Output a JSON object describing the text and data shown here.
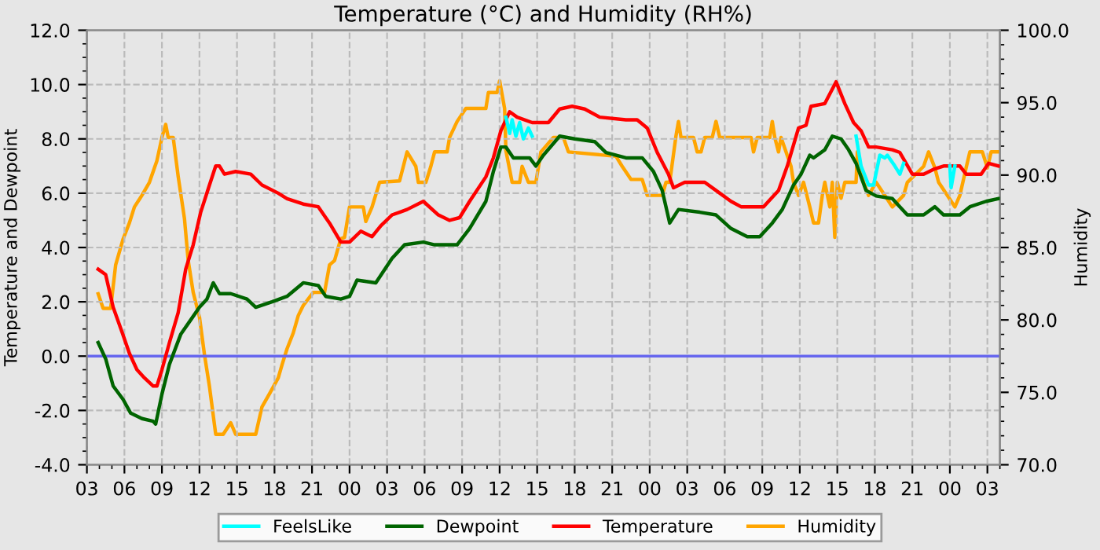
{
  "chart_data": {
    "type": "line",
    "title": "Temperature (°C) and Humidity (RH%)",
    "ylabel": "Temperature and Dewpoint",
    "y2label": "Humidity",
    "xlim": [
      3,
      76
    ],
    "xticks": [
      {
        "value": 3,
        "label": "03"
      },
      {
        "value": 6,
        "label": "06"
      },
      {
        "value": 9,
        "label": "09"
      },
      12,
      15,
      18,
      21,
      {
        "value": 24,
        "label": "00"
      },
      {
        "value": 27,
        "label": "03"
      },
      {
        "value": 30,
        "label": "06"
      },
      {
        "value": 33,
        "label": "09"
      },
      {
        "value": 36,
        "label": "12"
      },
      {
        "value": 39,
        "label": "15"
      },
      {
        "value": 42,
        "label": "18"
      },
      {
        "value": 45,
        "label": "21"
      },
      {
        "value": 48,
        "label": "00"
      },
      {
        "value": 51,
        "label": "03"
      },
      {
        "value": 54,
        "label": "06"
      },
      {
        "value": 57,
        "label": "09"
      },
      {
        "value": 60,
        "label": "12"
      },
      {
        "value": 63,
        "label": "15"
      },
      {
        "value": 66,
        "label": "18"
      },
      {
        "value": 69,
        "label": "21"
      },
      {
        "value": 72,
        "label": "00"
      },
      {
        "value": 75,
        "label": "03"
      }
    ],
    "ylim": [
      -4,
      12
    ],
    "yticks": [
      {
        "value": -4,
        "label": "-4.0"
      },
      {
        "value": -2,
        "label": "-2.0"
      },
      {
        "value": 0,
        "label": "0.0"
      },
      {
        "value": 2,
        "label": "2.0"
      },
      {
        "value": 4,
        "label": "4.0"
      },
      {
        "value": 6,
        "label": "6.0"
      },
      {
        "value": 8,
        "label": "8.0"
      },
      {
        "value": 10,
        "label": "10.0"
      },
      {
        "value": 12,
        "label": "12.0"
      }
    ],
    "y2lim": [
      70,
      100
    ],
    "y2ticks": [
      {
        "value": 70,
        "label": "70.0"
      },
      {
        "value": 75,
        "label": "75.0"
      },
      {
        "value": 80,
        "label": "80.0"
      },
      {
        "value": 85,
        "label": "85.0"
      },
      {
        "value": 90,
        "label": "90.0"
      },
      {
        "value": 95,
        "label": "95.0"
      },
      {
        "value": 100,
        "label": "100.0"
      }
    ],
    "grid": true,
    "legend": "bottom",
    "ref_lines": [
      {
        "axis": "y",
        "value": 0,
        "color": "#6666ee"
      }
    ],
    "series": [
      {
        "name": "FeelsLike",
        "color": "#00ffff",
        "x": [
          36.5,
          36.8,
          37.0,
          37.3,
          37.6,
          37.9,
          38.3,
          38.6,
          39.0,
          64.5,
          64.9,
          65.5,
          65.9,
          66.4,
          66.8,
          67.0,
          67.6,
          68.0,
          68.3,
          69.0,
          72.0,
          72.1,
          72.4
        ],
        "values": [
          8.8,
          8.2,
          8.7,
          8.1,
          8.6,
          8.0,
          8.4,
          8.1,
          null,
          8.1,
          7.0,
          6.3,
          6.3,
          7.4,
          7.3,
          7.4,
          7.0,
          6.7,
          7.1,
          null,
          7.0,
          6.2,
          7.0
        ]
      },
      {
        "name": "Dewpoint",
        "color": "#006400",
        "x": [
          3.9,
          4.5,
          5.1,
          5.9,
          6.5,
          7.4,
          8.3,
          8.5,
          9.0,
          9.6,
          10.5,
          11.4,
          12.0,
          12.6,
          13.1,
          13.6,
          14.5,
          15.8,
          16.5,
          17.8,
          19.0,
          20.3,
          21.5,
          22.1,
          23.3,
          24.0,
          24.6,
          26.1,
          27.4,
          28.4,
          29.9,
          30.8,
          32.6,
          33.6,
          34.9,
          35.5,
          36.1,
          36.5,
          37.1,
          38.4,
          38.9,
          39.5,
          40.8,
          42.0,
          43.6,
          44.5,
          46.1,
          47.4,
          48.3,
          49.0,
          49.6,
          50.3,
          52.0,
          53.3,
          54.5,
          55.8,
          56.8,
          57.8,
          58.6,
          59.5,
          60.1,
          60.8,
          61.1,
          62.0,
          62.6,
          63.3,
          63.9,
          64.5,
          65.3,
          66.1,
          67.4,
          68.0,
          68.6,
          69.9,
          70.8,
          71.5,
          72.8,
          73.6,
          74.9,
          75.9
        ],
        "values": [
          0.5,
          -0.1,
          -1.1,
          -1.6,
          -2.1,
          -2.3,
          -2.4,
          -2.5,
          -1.4,
          -0.3,
          0.8,
          1.4,
          1.8,
          2.1,
          2.7,
          2.3,
          2.3,
          2.1,
          1.8,
          2.0,
          2.2,
          2.7,
          2.6,
          2.2,
          2.1,
          2.2,
          2.8,
          2.7,
          3.6,
          4.1,
          4.2,
          4.1,
          4.1,
          4.7,
          5.7,
          6.8,
          7.7,
          7.7,
          7.3,
          7.3,
          7.0,
          7.4,
          8.1,
          8.0,
          7.9,
          7.5,
          7.3,
          7.3,
          6.8,
          6.1,
          4.9,
          5.4,
          5.3,
          5.2,
          4.7,
          4.4,
          4.4,
          4.9,
          5.4,
          6.3,
          6.7,
          7.4,
          7.3,
          7.6,
          8.1,
          8.0,
          7.6,
          7.1,
          6.1,
          5.9,
          5.8,
          5.5,
          5.2,
          5.2,
          5.5,
          5.2,
          5.2,
          5.5,
          5.7,
          5.8
        ]
      },
      {
        "name": "Temperature",
        "color": "#ff0000",
        "x": [
          3.9,
          4.5,
          5.1,
          5.8,
          6.4,
          7.0,
          7.6,
          8.3,
          8.6,
          9.0,
          9.6,
          10.3,
          10.9,
          11.5,
          12.1,
          12.8,
          13.3,
          13.6,
          14.0,
          14.9,
          16.1,
          17.0,
          18.3,
          19.0,
          20.3,
          21.5,
          22.4,
          23.3,
          24.0,
          24.9,
          25.8,
          26.5,
          27.4,
          28.6,
          29.9,
          31.1,
          32.0,
          32.8,
          33.6,
          34.9,
          35.5,
          36.1,
          36.8,
          37.4,
          38.6,
          39.9,
          40.8,
          41.8,
          42.8,
          44.0,
          46.1,
          47.0,
          47.8,
          48.6,
          49.5,
          49.9,
          50.8,
          52.4,
          53.3,
          54.5,
          55.3,
          57.1,
          58.3,
          59.0,
          59.9,
          60.5,
          60.9,
          62.0,
          62.9,
          63.6,
          64.3,
          64.9,
          65.5,
          66.1,
          67.4,
          68.0,
          69.0,
          69.9,
          70.8,
          71.5,
          72.8,
          73.3,
          74.5,
          75.1,
          75.9
        ],
        "values": [
          3.2,
          3.0,
          1.8,
          0.9,
          0.1,
          -0.5,
          -0.8,
          -1.1,
          -1.1,
          -0.5,
          0.5,
          1.6,
          3.2,
          4.1,
          5.3,
          6.3,
          7.0,
          7.0,
          6.7,
          6.8,
          6.7,
          6.3,
          6.0,
          5.8,
          5.6,
          5.5,
          4.9,
          4.2,
          4.2,
          4.6,
          4.4,
          4.8,
          5.2,
          5.4,
          5.7,
          5.2,
          5.0,
          5.1,
          5.7,
          6.6,
          7.3,
          8.3,
          9.0,
          8.8,
          8.6,
          8.6,
          9.1,
          9.2,
          9.1,
          8.8,
          8.7,
          8.7,
          8.4,
          7.5,
          6.7,
          6.2,
          6.4,
          6.4,
          6.1,
          5.7,
          5.5,
          5.5,
          6.1,
          7.0,
          8.4,
          8.5,
          9.2,
          9.3,
          10.1,
          9.3,
          8.6,
          8.3,
          7.7,
          7.7,
          7.6,
          7.5,
          6.7,
          6.7,
          6.9,
          7.0,
          7.0,
          6.7,
          6.7,
          7.1,
          7.0
        ]
      },
      {
        "name": "Humidity",
        "color": "#ffa500",
        "axis": "y2",
        "x": [
          3.9,
          4.3,
          4.9,
          5.3,
          5.9,
          6.4,
          6.8,
          7.4,
          8.0,
          8.6,
          9.0,
          9.3,
          9.5,
          9.9,
          10.3,
          10.8,
          11.1,
          11.5,
          12.0,
          12.4,
          12.8,
          13.3,
          13.9,
          14.5,
          14.9,
          16.5,
          17.0,
          17.6,
          18.3,
          18.6,
          19.0,
          19.5,
          19.9,
          20.3,
          21.1,
          22.0,
          22.4,
          22.8,
          23.3,
          23.6,
          24.0,
          25.1,
          25.3,
          25.8,
          26.4,
          28.0,
          28.6,
          29.3,
          29.5,
          30.1,
          30.5,
          30.8,
          31.8,
          32.0,
          32.6,
          33.3,
          34.9,
          35.1,
          35.8,
          36.0,
          36.4,
          36.5,
          37.0,
          37.6,
          37.8,
          38.3,
          38.9,
          39.3,
          40.3,
          41.1,
          41.5,
          45.3,
          45.8,
          46.5,
          47.4,
          47.8,
          49.0,
          49.3,
          49.6,
          50.1,
          50.3,
          50.5,
          51.5,
          51.8,
          52.1,
          52.4,
          53.0,
          53.3,
          53.6,
          56.1,
          56.3,
          56.6,
          57.6,
          57.8,
          58.0,
          58.3,
          58.5,
          58.9,
          59.3,
          59.5,
          59.9,
          60.3,
          60.8,
          61.1,
          61.5,
          61.8,
          62.0,
          62.4,
          62.6,
          62.8,
          63.0,
          63.3,
          63.6,
          64.5,
          64.6,
          65.1,
          65.5,
          66.1,
          66.8,
          67.4,
          68.3,
          68.6,
          69.9,
          70.3,
          70.8,
          71.1,
          71.8,
          72.4,
          72.8,
          73.3,
          73.6,
          74.6,
          75.0,
          75.3,
          76.0
        ],
        "values": [
          81.8,
          80.8,
          80.8,
          83.8,
          85.6,
          86.7,
          87.8,
          88.6,
          89.5,
          91.0,
          92.6,
          93.5,
          92.6,
          92.6,
          89.9,
          87.0,
          84.1,
          81.9,
          80.2,
          77.6,
          75.4,
          72.1,
          72.1,
          72.9,
          72.1,
          72.1,
          74.0,
          74.9,
          76.0,
          76.9,
          78.0,
          79.1,
          80.3,
          81.0,
          81.9,
          81.9,
          83.8,
          84.1,
          85.6,
          85.7,
          87.8,
          87.8,
          86.8,
          87.8,
          89.5,
          89.6,
          91.6,
          90.6,
          89.5,
          89.5,
          90.6,
          91.6,
          91.6,
          92.6,
          93.7,
          94.6,
          94.6,
          95.7,
          95.7,
          96.5,
          94.6,
          91.7,
          89.5,
          89.5,
          90.6,
          89.5,
          89.5,
          91.6,
          92.6,
          92.6,
          91.6,
          91.3,
          90.6,
          89.7,
          89.7,
          88.6,
          88.6,
          89.5,
          89.5,
          92.7,
          93.7,
          92.6,
          92.6,
          91.6,
          91.6,
          92.6,
          92.6,
          93.7,
          92.6,
          92.6,
          91.6,
          92.6,
          92.6,
          93.7,
          92.6,
          91.6,
          92.6,
          91.6,
          90.6,
          89.5,
          88.6,
          89.5,
          87.8,
          86.7,
          86.7,
          88.6,
          89.5,
          87.8,
          89.5,
          85.7,
          89.5,
          88.4,
          89.5,
          89.5,
          91.6,
          89.5,
          88.6,
          89.5,
          88.6,
          87.8,
          88.6,
          89.5,
          90.6,
          91.6,
          90.5,
          89.5,
          88.6,
          87.8,
          88.6,
          90.5,
          91.6,
          91.6,
          90.5,
          91.6,
          91.6
        ]
      }
    ]
  }
}
